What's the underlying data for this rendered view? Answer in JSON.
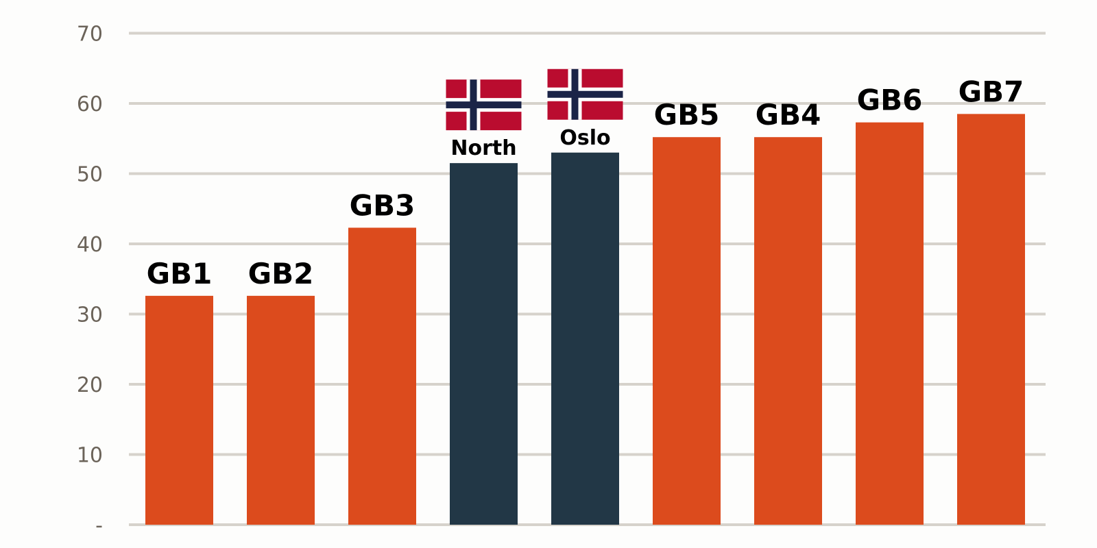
{
  "chart_data": {
    "type": "bar",
    "title": "",
    "xlabel": "",
    "ylabel": "",
    "ylim": [
      0,
      70
    ],
    "yticks": [
      0,
      10,
      20,
      30,
      40,
      50,
      60,
      70
    ],
    "ytick_labels": [
      "-",
      "10",
      "20",
      "30",
      "40",
      "50",
      "60",
      "70"
    ],
    "grid": true,
    "categories": [
      "GB1",
      "GB2",
      "GB3",
      "North",
      "Oslo",
      "GB5",
      "GB4",
      "GB6",
      "GB7"
    ],
    "values": [
      32.6,
      32.6,
      42.3,
      51.5,
      53.0,
      55.2,
      55.2,
      57.3,
      58.5
    ],
    "highlight": [
      false,
      false,
      false,
      true,
      true,
      false,
      false,
      false,
      false
    ],
    "flag_icons": [
      null,
      null,
      null,
      "norway-flag-icon",
      "norway-flag-icon",
      null,
      null,
      null,
      null
    ],
    "colors": {
      "default": "#dc4b1d",
      "highlight": "#223746",
      "grid": "#d6d2cb",
      "tick": "#6b6359"
    }
  }
}
